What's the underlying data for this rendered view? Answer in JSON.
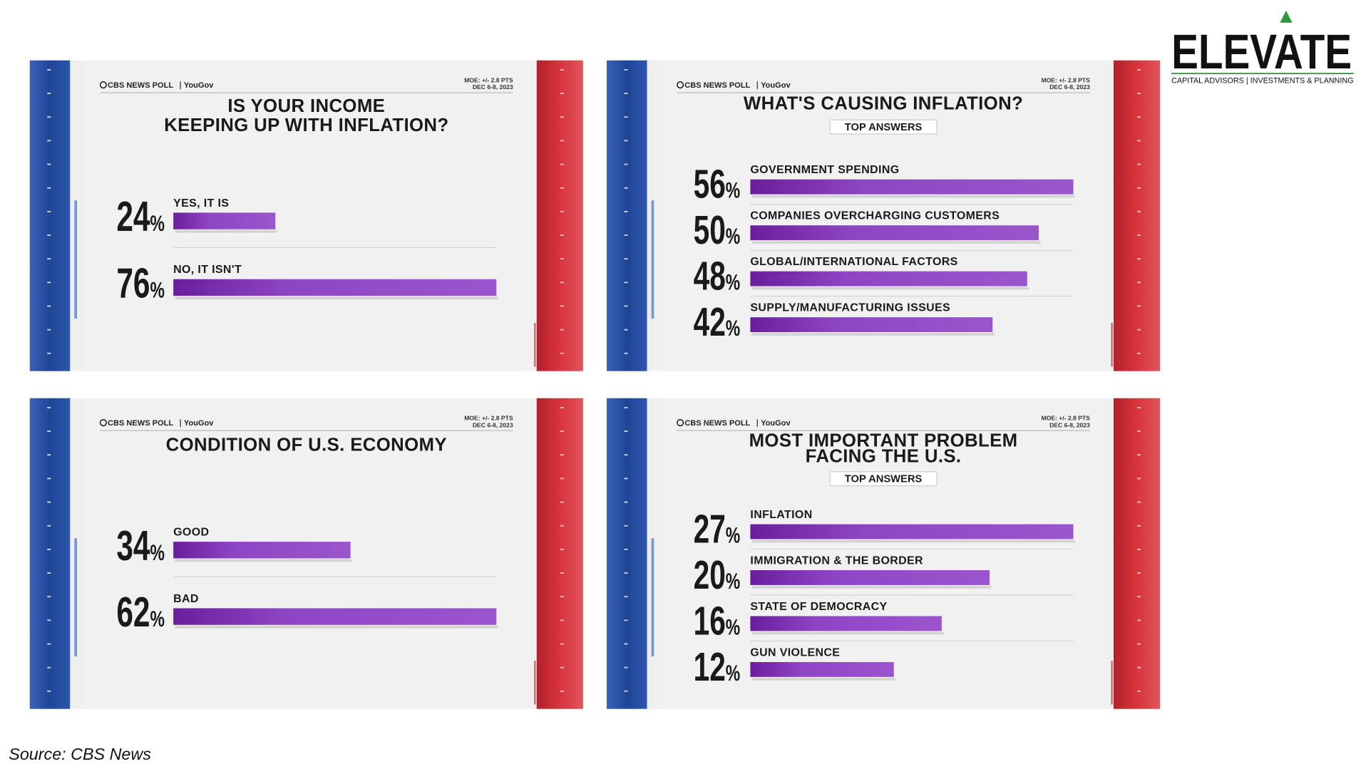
{
  "logo": {
    "name": "ELEVATE",
    "tagline": "CAPITAL ADVISORS | INVESTMENTS & PLANNING"
  },
  "source": "Source: CBS News",
  "chart_data": [
    {
      "type": "bar",
      "brand": "CBS NEWS POLL",
      "partner": "YouGov",
      "moe": "MOE: +/- 2.8 PTS",
      "dates": "DEC 6-8, 2023",
      "title": [
        "IS YOUR INCOME",
        "KEEPING UP WITH INFLATION?"
      ],
      "categories": [
        "YES, IT IS",
        "NO, IT ISN'T"
      ],
      "values": [
        24,
        76
      ],
      "value_labels": [
        "24%",
        "76%"
      ],
      "color": "#8a3fbf"
    },
    {
      "type": "bar",
      "brand": "CBS NEWS POLL",
      "partner": "YouGov",
      "moe": "MOE: +/- 2.8 PTS",
      "dates": "DEC 6-8, 2023",
      "title": [
        "WHAT'S CAUSING INFLATION?"
      ],
      "subtitle": "TOP ANSWERS",
      "categories": [
        "GOVERNMENT SPENDING",
        "COMPANIES OVERCHARGING CUSTOMERS",
        "GLOBAL/INTERNATIONAL FACTORS",
        "SUPPLY/MANUFACTURING ISSUES"
      ],
      "values": [
        56,
        50,
        48,
        42
      ],
      "value_labels": [
        "56%",
        "50%",
        "48%",
        "42%"
      ],
      "color": "#8a3fbf"
    },
    {
      "type": "bar",
      "brand": "CBS NEWS POLL",
      "partner": "YouGov",
      "moe": "MOE: +/- 2.8 PTS",
      "dates": "DEC 6-8, 2023",
      "title": [
        "CONDITION OF U.S. ECONOMY"
      ],
      "categories": [
        "GOOD",
        "BAD"
      ],
      "values": [
        34,
        62
      ],
      "value_labels": [
        "34%",
        "62%"
      ],
      "color": "#8a3fbf"
    },
    {
      "type": "bar",
      "brand": "CBS NEWS POLL",
      "partner": "YouGov",
      "moe": "MOE: +/- 2.8 PTS",
      "dates": "DEC 6-8, 2023",
      "title": [
        "MOST IMPORTANT PROBLEM",
        "FACING THE U.S."
      ],
      "subtitle": "TOP ANSWERS",
      "categories": [
        "INFLATION",
        "IMMIGRATION & THE BORDER",
        "STATE OF DEMOCRACY",
        "GUN VIOLENCE"
      ],
      "values": [
        27,
        20,
        16,
        12
      ],
      "value_labels": [
        "27%",
        "20%",
        "16%",
        "12%"
      ],
      "color": "#8a3fbf"
    }
  ]
}
